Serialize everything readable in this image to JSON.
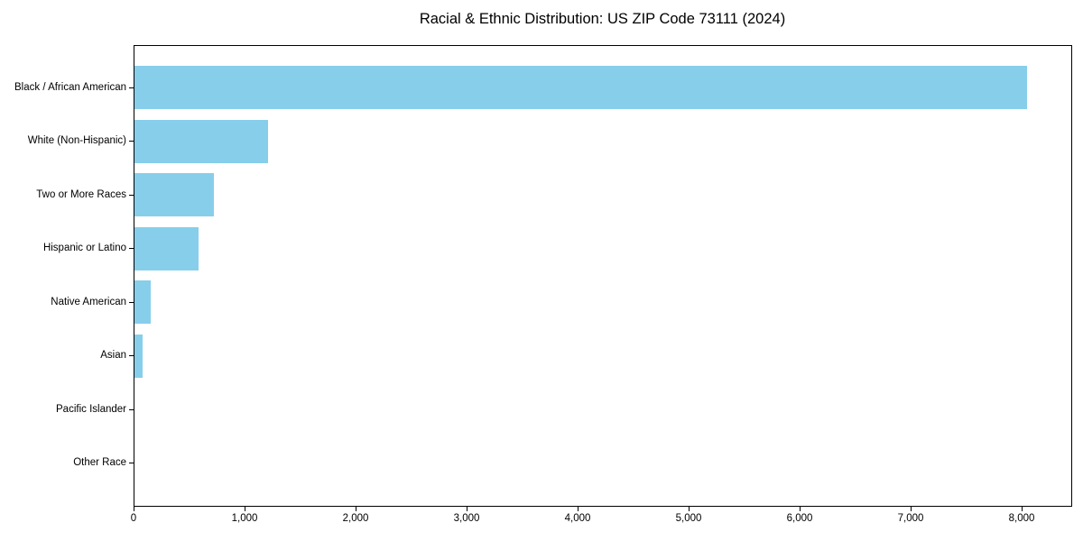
{
  "chart_data": {
    "type": "bar",
    "orientation": "horizontal",
    "title": "Racial & Ethnic Distribution: US ZIP Code 73111 (2024)",
    "categories": [
      "Black / African American",
      "White (Non-Hispanic)",
      "Two or More Races",
      "Hispanic or Latino",
      "Native American",
      "Asian",
      "Pacific Islander",
      "Other Race"
    ],
    "values": [
      8040,
      1200,
      715,
      575,
      150,
      75,
      0,
      0
    ],
    "xlabel": "",
    "ylabel": "",
    "xlim": [
      0,
      8447
    ],
    "xticks": [
      0,
      1000,
      2000,
      3000,
      4000,
      5000,
      6000,
      7000,
      8000
    ],
    "xtick_labels": [
      "0",
      "1,000",
      "2,000",
      "3,000",
      "4,000",
      "5,000",
      "6,000",
      "7,000",
      "8,000"
    ],
    "bar_color": "#87CEEB",
    "axis_color": "#000000",
    "text_color": "#000000",
    "grid": false,
    "legend": null
  }
}
